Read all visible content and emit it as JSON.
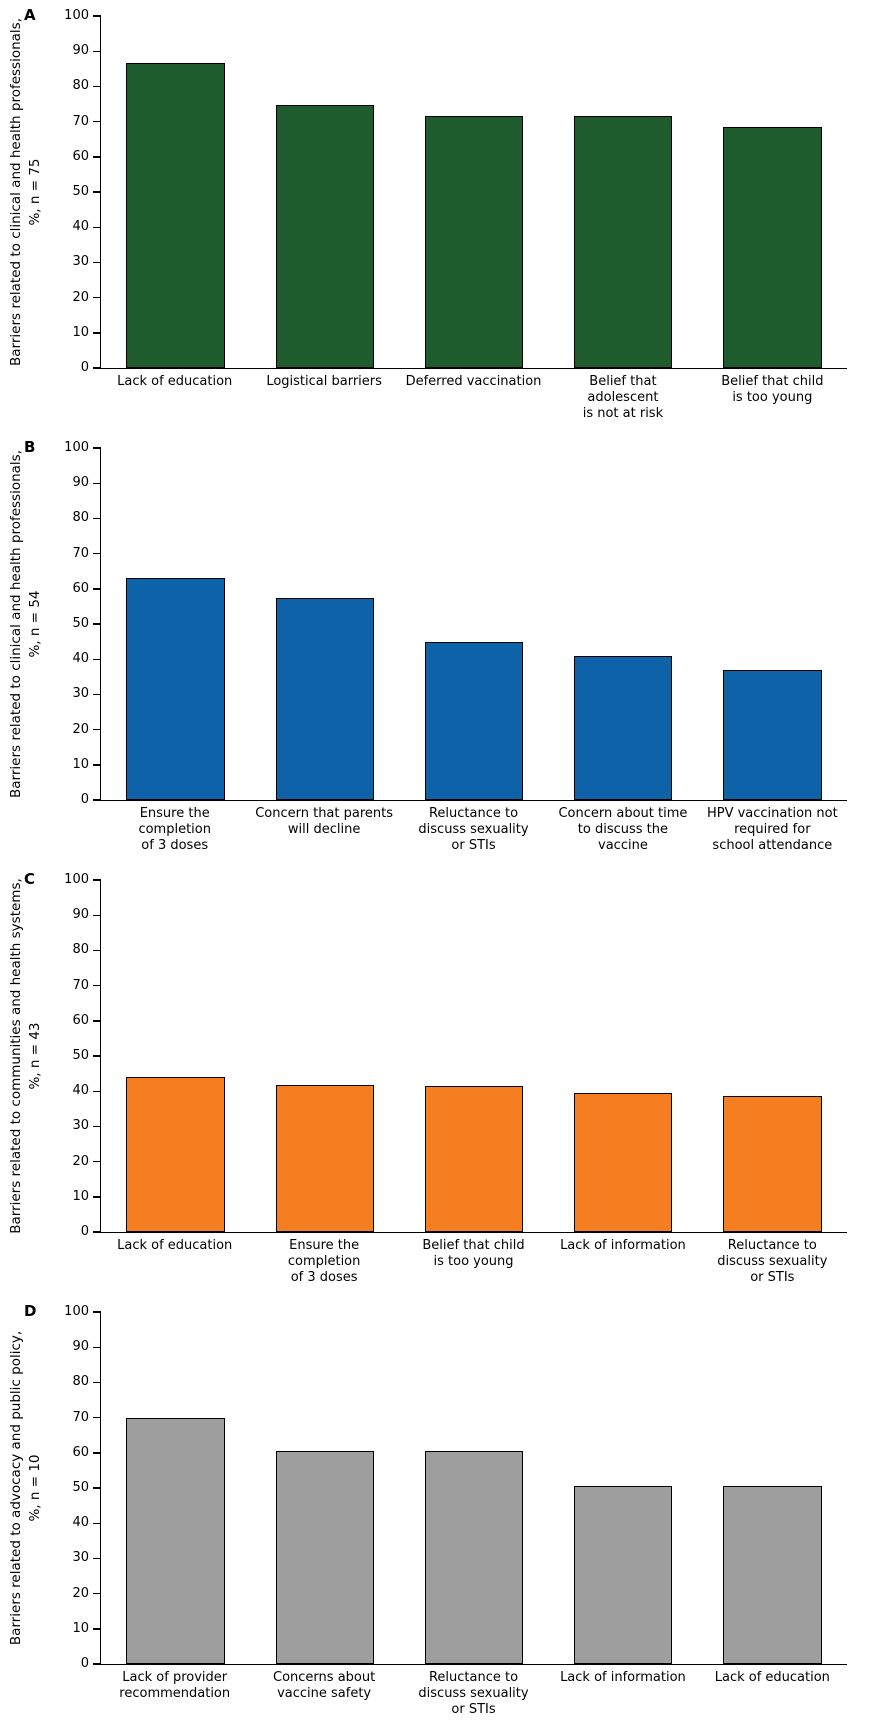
{
  "chart_data": [
    {
      "type": "bar",
      "panel": "A",
      "ylabel": "Barriers related to clinical and health professionals, %, n = 75",
      "ylabel_line1": "Barriers related to clinical and health professionals,",
      "ylabel_line2": "%, n = 75",
      "categories": [
        "Lack of education",
        "Logistical barriers",
        "Deferred vaccination",
        "Belief that adolescent\nis not at risk",
        "Belief that child\nis too young"
      ],
      "values": [
        86.7,
        74.7,
        71.5,
        71.5,
        68.4
      ],
      "ylim": [
        0,
        100
      ],
      "yticks": [
        0,
        10,
        20,
        30,
        40,
        50,
        60,
        70,
        80,
        90,
        100
      ],
      "bar_color": "#1f5c2d",
      "bar_edge": "#000000",
      "grid": false,
      "legend": null
    },
    {
      "type": "bar",
      "panel": "B",
      "ylabel": "Barriers related to clinical and health professionals, %, n = 54",
      "ylabel_line1": "Barriers related to clinical and health professionals,",
      "ylabel_line2": "%, n = 54",
      "categories": [
        "Ensure the completion\nof 3 doses",
        "Concern that parents\nwill decline",
        "Reluctance to\ndiscuss sexuality\nor STIs",
        "Concern about time\nto discuss the vaccine",
        "HPV vaccination not\nrequired for\nschool attendance"
      ],
      "values": [
        63,
        57.5,
        45,
        41,
        37
      ],
      "ylim": [
        0,
        100
      ],
      "yticks": [
        0,
        10,
        20,
        30,
        40,
        50,
        60,
        70,
        80,
        90,
        100
      ],
      "bar_color": "#0e62a8",
      "bar_edge": "#000000",
      "grid": false,
      "legend": null
    },
    {
      "type": "bar",
      "panel": "C",
      "ylabel": "Barriers related to communities and health systems, %, n = 43",
      "ylabel_line1": "Barriers related to communities and health systems,",
      "ylabel_line2": "%, n = 43",
      "categories": [
        "Lack of education",
        "Ensure the completion\nof 3 doses",
        "Belief that child\nis too young",
        "Lack of information",
        "Reluctance to\ndiscuss sexuality\nor STIs"
      ],
      "values": [
        44,
        41.9,
        41.5,
        39.5,
        38.5
      ],
      "ylim": [
        0,
        100
      ],
      "yticks": [
        0,
        10,
        20,
        30,
        40,
        50,
        60,
        70,
        80,
        90,
        100
      ],
      "bar_color": "#f57e20",
      "bar_edge": "#000000",
      "grid": false,
      "legend": null
    },
    {
      "type": "bar",
      "panel": "D",
      "ylabel": "Barriers related to advocacy and public policy, %, n = 10",
      "ylabel_line1": "Barriers related to advocacy and public policy,",
      "ylabel_line2": "%, n = 10",
      "categories": [
        "Lack of provider\nrecommendation",
        "Concerns about\nvaccine safety",
        "Reluctance to\ndiscuss sexuality\nor STIs",
        "Lack of information",
        "Lack of education"
      ],
      "values": [
        70,
        60.5,
        60.5,
        50.5,
        50.5
      ],
      "ylim": [
        0,
        100
      ],
      "yticks": [
        0,
        10,
        20,
        30,
        40,
        50,
        60,
        70,
        80,
        90,
        100
      ],
      "bar_color": "#9e9e9e",
      "bar_edge": "#000000",
      "grid": false,
      "legend": null
    }
  ]
}
